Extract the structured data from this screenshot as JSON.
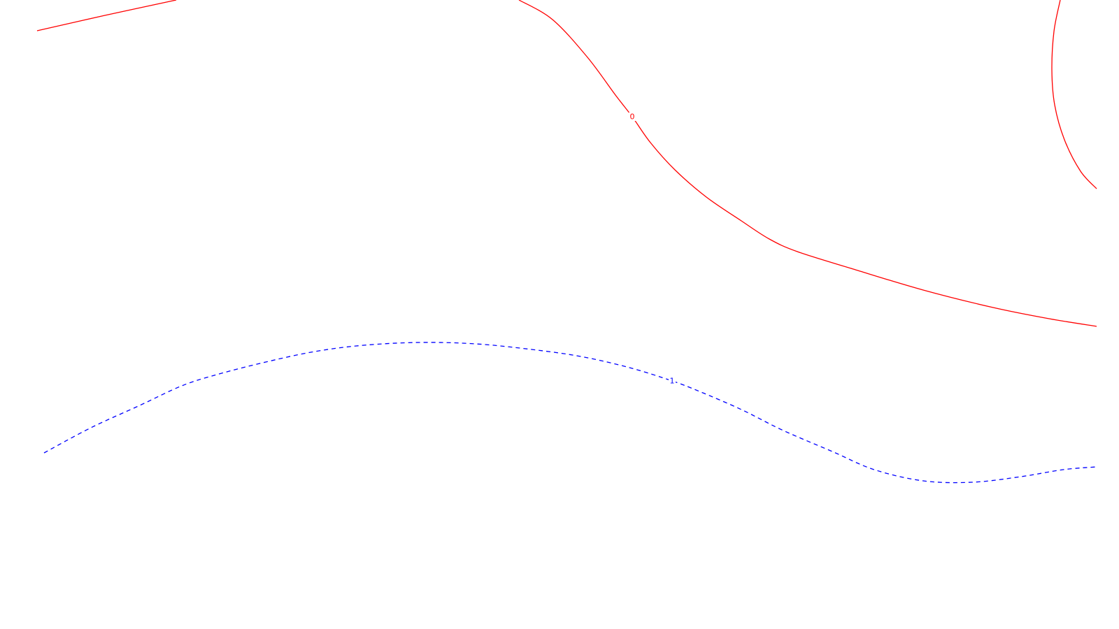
{
  "chart_data": {
    "type": "contour",
    "title": "",
    "xlabel": "",
    "ylabel": "",
    "grid": false,
    "legend": false,
    "levels": [
      {
        "level": 0,
        "label": "0",
        "color": "#ff0000",
        "line_style": "solid",
        "paths": [
          [
            [
              53,
              44
            ],
            [
              150,
              22
            ],
            [
              252,
              0
            ]
          ],
          [
            [
              742,
              0
            ],
            [
              790,
              28
            ],
            [
              840,
              82
            ],
            [
              880,
              136
            ],
            [
              904,
              167
            ],
            [
              930,
              204
            ],
            [
              965,
              243
            ],
            [
              1010,
              282
            ],
            [
              1060,
              316
            ],
            [
              1100,
              342
            ],
            [
              1140,
              360
            ],
            [
              1220,
              385
            ],
            [
              1320,
              415
            ],
            [
              1420,
              440
            ],
            [
              1500,
              456
            ],
            [
              1568,
              467
            ]
          ],
          [
            [
              1516,
              0
            ],
            [
              1507,
              45
            ],
            [
              1504,
              100
            ],
            [
              1508,
              150
            ],
            [
              1522,
              200
            ],
            [
              1545,
              245
            ],
            [
              1568,
              270
            ]
          ]
        ],
        "label_position": [
          904,
          167
        ]
      },
      {
        "level": 1,
        "label": "1",
        "color": "#0000ff",
        "line_style": "dashed",
        "paths": [
          [
            [
              63,
              648
            ],
            [
              130,
              612
            ],
            [
              200,
              580
            ],
            [
              260,
              552
            ],
            [
              310,
              536
            ],
            [
              380,
              518
            ],
            [
              450,
              503
            ],
            [
              520,
              494
            ],
            [
              600,
              490
            ],
            [
              680,
              492
            ],
            [
              760,
              500
            ],
            [
              830,
              510
            ],
            [
              900,
              526
            ],
            [
              961,
              545
            ],
            [
              1000,
              560
            ],
            [
              1060,
              586
            ],
            [
              1120,
              616
            ],
            [
              1190,
              646
            ],
            [
              1250,
              672
            ],
            [
              1320,
              688
            ],
            [
              1390,
              690
            ],
            [
              1460,
              682
            ],
            [
              1520,
              672
            ],
            [
              1568,
              668
            ]
          ]
        ],
        "label_position": [
          961,
          545
        ]
      }
    ]
  }
}
